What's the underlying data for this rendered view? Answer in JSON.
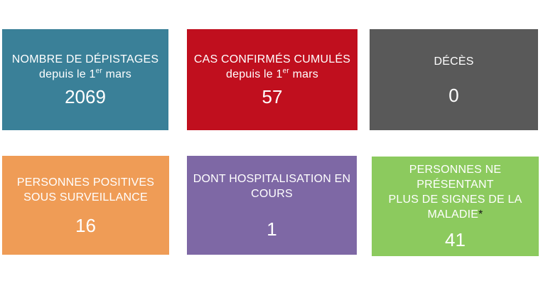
{
  "page": {
    "background": "#FFFFFF",
    "text_color": "#FFFFFF"
  },
  "chart_data": {
    "type": "table",
    "title": "",
    "categories": [
      "NOMBRE DE DÉPISTAGES depuis le 1er mars",
      "CAS CONFIRMÉS CUMULÉS depuis le 1er mars",
      "DÉCÈS",
      "PERSONNES POSITIVES SOUS SURVEILLANCE",
      "DONT HOSPITALISATION EN COURS",
      "PERSONNES NE PRÉSENTANT PLUS DE SIGNES DE LA MALADIE*"
    ],
    "values": [
      2069,
      57,
      0,
      16,
      1,
      41
    ],
    "colors": [
      "#3A8098",
      "#C00F1E",
      "#595959",
      "#EF9C56",
      "#7E68A5",
      "#8CCA5E"
    ],
    "legend_position": "none",
    "grid": false
  },
  "cards": [
    {
      "id": "nombre-depistages",
      "color": "#3A8098",
      "title_lines": [
        [
          {
            "t": "NOMBRE DE DÉPISTAGES"
          }
        ],
        [
          {
            "t": "depuis le 1"
          },
          {
            "t": "er",
            "sup": true
          },
          {
            "t": " mars"
          }
        ]
      ],
      "value": "2069"
    },
    {
      "id": "cas-confirmes",
      "color": "#C00F1E",
      "title_lines": [
        [
          {
            "t": "CAS CONFIRMÉS CUMULÉS"
          }
        ],
        [
          {
            "t": "depuis le 1"
          },
          {
            "t": "er",
            "sup": true
          },
          {
            "t": " mars"
          }
        ]
      ],
      "value": "57"
    },
    {
      "id": "deces",
      "color": "#595959",
      "title_lines": [
        [
          {
            "t": "DÉCÈS"
          }
        ]
      ],
      "value": "0"
    },
    {
      "id": "personnes-positives",
      "color": "#EF9C56",
      "title_lines": [
        [
          {
            "t": "PERSONNES POSITIVES"
          }
        ],
        [
          {
            "t": "SOUS SURVEILLANCE"
          }
        ]
      ],
      "value": "16"
    },
    {
      "id": "hospitalisation-en-cours",
      "color": "#7E68A5",
      "title_lines": [
        [
          {
            "t": "DONT HOSPITALISATION EN"
          }
        ],
        [
          {
            "t": "COURS"
          }
        ]
      ],
      "value": "1"
    },
    {
      "id": "plus-de-signes-maladie",
      "color": "#8CCA5E",
      "title_lines": [
        [
          {
            "t": "PERSONNES NE PRÉSENTANT"
          }
        ],
        [
          {
            "t": "PLUS DE SIGNES DE LA"
          }
        ],
        [
          {
            "t": "MALADIE"
          },
          {
            "t": "*",
            "color": "#1A1A1A"
          }
        ]
      ],
      "value": "41"
    }
  ]
}
